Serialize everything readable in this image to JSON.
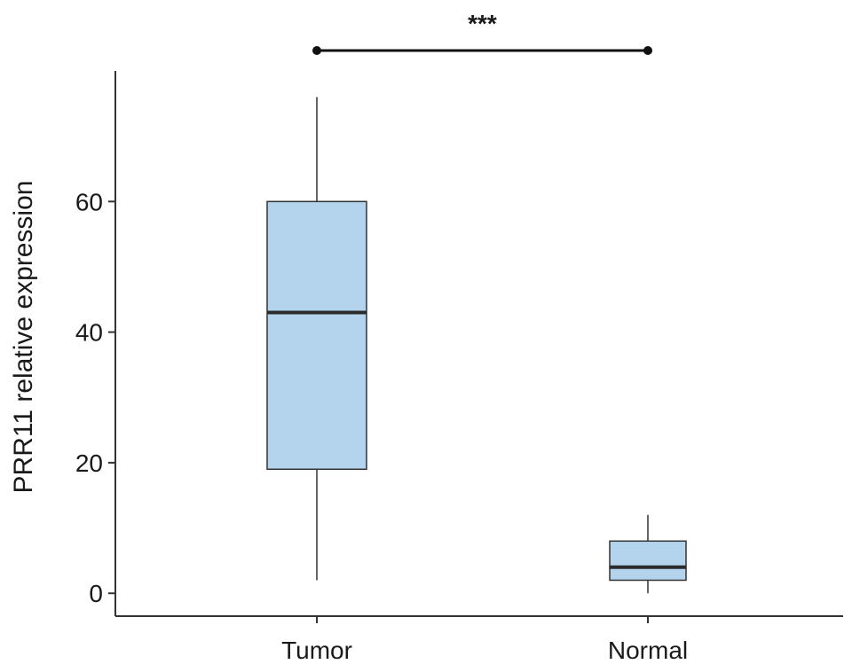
{
  "chart_data": {
    "type": "box",
    "categories": [
      "Tumor",
      "Normal"
    ],
    "ylabel": "PRR11 relative expression",
    "xlabel": "",
    "ylim": [
      -3.5,
      80
    ],
    "yticks": [
      0,
      20,
      40,
      60
    ],
    "boxes": [
      {
        "category": "Tumor",
        "whisker_low": 2,
        "q1": 19,
        "median": 43,
        "q3": 60,
        "whisker_high": 76
      },
      {
        "category": "Normal",
        "whisker_low": 0,
        "q1": 2,
        "median": 4,
        "q3": 8,
        "whisker_high": 12
      }
    ],
    "significance": {
      "from": "Tumor",
      "to": "Normal",
      "label": "***"
    },
    "colors": {
      "box_fill": "#b3d4ec",
      "box_stroke": "#333333",
      "median": "#2b2b2b",
      "axis": "#333333"
    },
    "grid": false,
    "legend": "none"
  }
}
